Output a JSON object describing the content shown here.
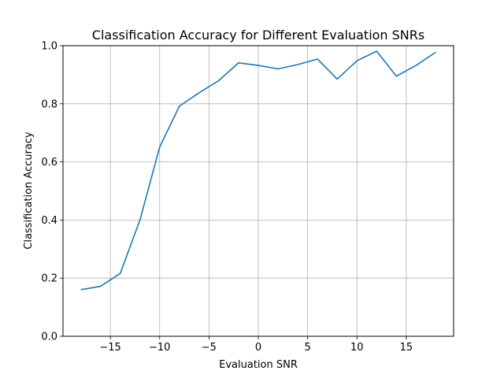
{
  "chart_data": {
    "type": "line",
    "title": "Classification Accuracy for Different Evaluation SNRs",
    "xlabel": "Evaluation SNR",
    "ylabel": "Classification Accuracy",
    "xlim": [
      -19.8,
      19.8
    ],
    "ylim": [
      0.0,
      1.0
    ],
    "grid": true,
    "x_ticks": [
      -15,
      -10,
      -5,
      0,
      5,
      10,
      15
    ],
    "x_tick_labels": [
      "−15",
      "−10",
      "−5",
      "0",
      "5",
      "10",
      "15"
    ],
    "y_ticks": [
      0.0,
      0.2,
      0.4,
      0.6,
      0.8,
      1.0
    ],
    "y_tick_labels": [
      "0.0",
      "0.2",
      "0.4",
      "0.6",
      "0.8",
      "1.0"
    ],
    "series": [
      {
        "color": "#1f77b4",
        "x": [
          -18,
          -16,
          -14,
          -12,
          -10,
          -8,
          -6,
          -4,
          -2,
          0,
          2,
          4,
          6,
          8,
          10,
          12,
          14,
          16,
          18
        ],
        "y": [
          0.16,
          0.172,
          0.216,
          0.4,
          0.651,
          0.792,
          0.838,
          0.88,
          0.941,
          0.932,
          0.92,
          0.935,
          0.954,
          0.885,
          0.948,
          0.981,
          0.895,
          0.932,
          0.978
        ]
      }
    ]
  }
}
